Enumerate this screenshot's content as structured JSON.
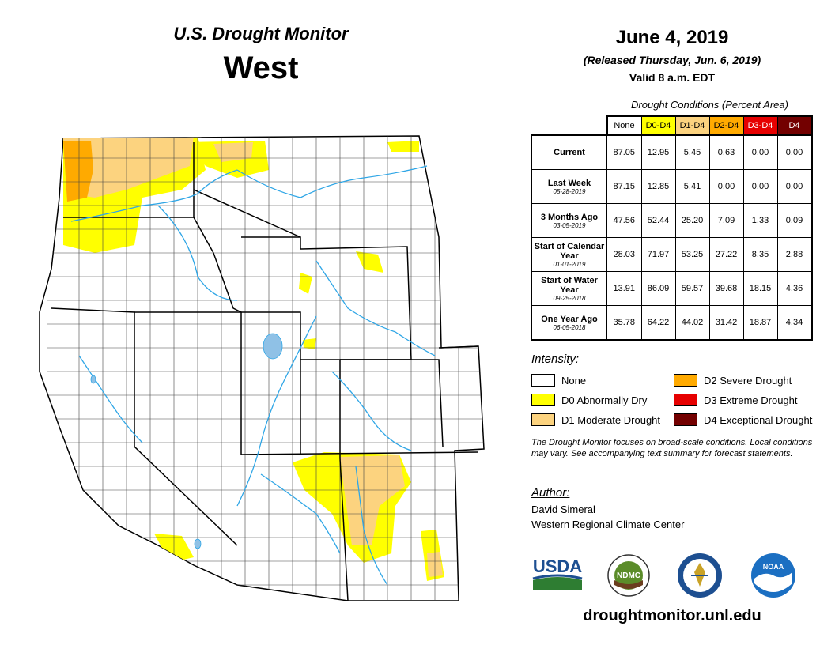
{
  "header": {
    "monitor_title": "U.S. Drought Monitor",
    "region": "West",
    "date": "June 4, 2019",
    "released": "(Released Thursday, Jun. 6, 2019)",
    "valid": "Valid 8 a.m. EDT"
  },
  "conditions": {
    "caption": "Drought Conditions (Percent Area)",
    "columns": [
      {
        "label": "None",
        "bg": "#ffffff",
        "fg": "#000000"
      },
      {
        "label": "D0-D4",
        "bg": "#ffff00",
        "fg": "#000000"
      },
      {
        "label": "D1-D4",
        "bg": "#fcd37f",
        "fg": "#000000"
      },
      {
        "label": "D2-D4",
        "bg": "#ffaa00",
        "fg": "#000000"
      },
      {
        "label": "D3-D4",
        "bg": "#e60000",
        "fg": "#ffffff"
      },
      {
        "label": "D4",
        "bg": "#730000",
        "fg": "#ffffff"
      }
    ],
    "rows": [
      {
        "label": "Current",
        "date": "",
        "values": [
          "87.05",
          "12.95",
          "5.45",
          "0.63",
          "0.00",
          "0.00"
        ]
      },
      {
        "label": "Last Week",
        "date": "05-28-2019",
        "values": [
          "87.15",
          "12.85",
          "5.41",
          "0.00",
          "0.00",
          "0.00"
        ]
      },
      {
        "label": "3 Months Ago",
        "date": "03-05-2019",
        "values": [
          "47.56",
          "52.44",
          "25.20",
          "7.09",
          "1.33",
          "0.09"
        ]
      },
      {
        "label": "Start of Calendar Year",
        "date": "01-01-2019",
        "values": [
          "28.03",
          "71.97",
          "53.25",
          "27.22",
          "8.35",
          "2.88"
        ]
      },
      {
        "label": "Start of Water Year",
        "date": "09-25-2018",
        "values": [
          "13.91",
          "86.09",
          "59.57",
          "39.68",
          "18.15",
          "4.36"
        ]
      },
      {
        "label": "One Year Ago",
        "date": "06-05-2018",
        "values": [
          "35.78",
          "64.22",
          "44.02",
          "31.42",
          "18.87",
          "4.34"
        ]
      }
    ]
  },
  "legend": {
    "title": "Intensity:",
    "items": [
      {
        "label": "None",
        "color": "#ffffff"
      },
      {
        "label": "D0 Abnormally Dry",
        "color": "#ffff00"
      },
      {
        "label": "D1 Moderate Drought",
        "color": "#fcd37f"
      },
      {
        "label": "D2 Severe Drought",
        "color": "#ffaa00"
      },
      {
        "label": "D3 Extreme Drought",
        "color": "#e60000"
      },
      {
        "label": "D4 Exceptional Drought",
        "color": "#730000"
      }
    ]
  },
  "note": "The Drought Monitor focuses on broad-scale conditions. Local conditions may vary. See accompanying text summary for forecast statements.",
  "author": {
    "title": "Author:",
    "name": "David Simeral",
    "org": "Western Regional Climate Center"
  },
  "logos": {
    "usda": "USDA",
    "ndmc": "NDMC",
    "noaa": "NOAA"
  },
  "url": "droughtmonitor.unl.edu",
  "colors": {
    "water": "#2fa6e6",
    "lake": "#8fc1e6",
    "border": "#000000",
    "county": "#444444"
  }
}
